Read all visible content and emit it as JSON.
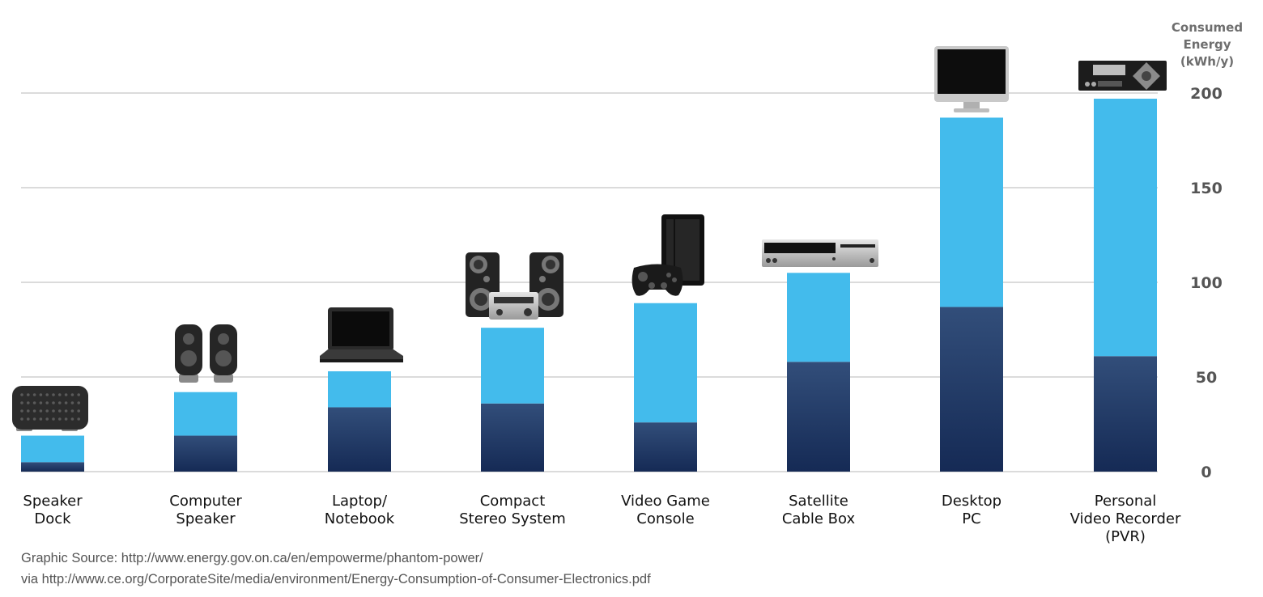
{
  "chart_data": {
    "type": "bar",
    "stacked": true,
    "ylabel": [
      "Consumed",
      "Energy",
      "(kWh/y)"
    ],
    "ylim": [
      0,
      200
    ],
    "yticks": [
      0,
      50,
      100,
      150,
      200
    ],
    "y_axis_side": "right",
    "grid": true,
    "categories": [
      [
        "Speaker",
        "Dock"
      ],
      [
        "Computer",
        "Speaker"
      ],
      [
        "Laptop/",
        "Notebook"
      ],
      [
        "Compact",
        "Stereo System"
      ],
      [
        "Video Game",
        "Console"
      ],
      [
        "Satellite",
        "Cable Box"
      ],
      [
        "Desktop",
        "PC"
      ],
      [
        "Personal",
        "Video Recorder",
        "(PVR)"
      ]
    ],
    "series": [
      {
        "color": "#1f3866",
        "values": [
          5,
          19,
          34,
          36,
          26,
          58,
          87,
          61
        ]
      },
      {
        "color": "#43bbec",
        "values": [
          14,
          23,
          19,
          40,
          63,
          47,
          100,
          136
        ]
      }
    ],
    "icons": [
      "speaker-dock-icon",
      "computer-speakers-icon",
      "laptop-icon",
      "stereo-system-icon",
      "game-console-icon",
      "cable-box-icon",
      "desktop-monitor-icon",
      "video-recorder-icon"
    ]
  },
  "source": {
    "line1": "Graphic Source: http://www.energy.gov.on.ca/en/empowerme/phantom-power/",
    "line2": "via http://www.ce.org/CorporateSite/media/environment/Energy-Consumption-of-Consumer-Electronics.pdf"
  }
}
